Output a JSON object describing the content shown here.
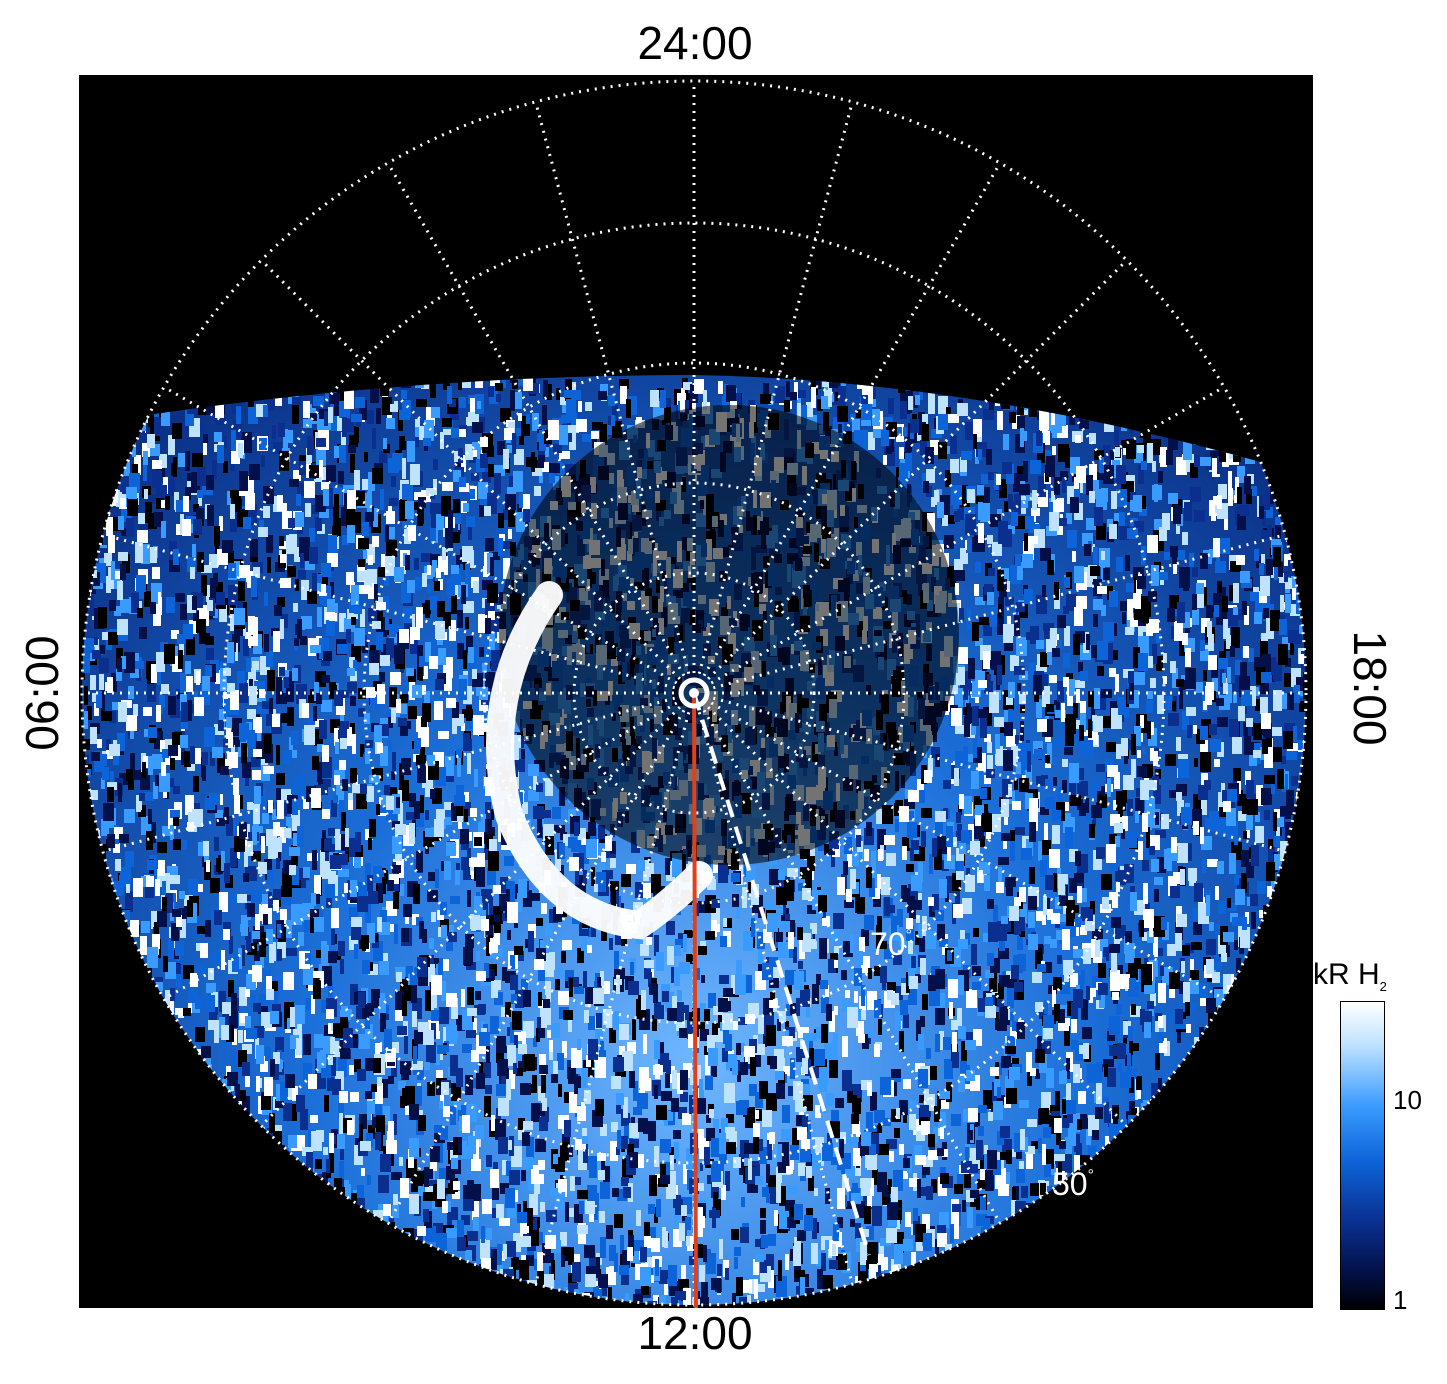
{
  "local_time_labels": {
    "top": "24:00",
    "bottom": "12:00",
    "left": "06:00",
    "right": "18:00"
  },
  "latitude_labels": [
    {
      "text": "70",
      "unit": "°"
    },
    {
      "text": "50",
      "unit": "°"
    }
  ],
  "colorbar": {
    "title": "kR H",
    "title_sub": "2",
    "scale": "log",
    "range": [
      1,
      30
    ],
    "ticks": [
      "10",
      "1"
    ],
    "colors": [
      "#000000",
      "#031049",
      "#0a2f8f",
      "#0d63d8",
      "#3a9bff",
      "#bfe2ff",
      "#ffffff"
    ]
  },
  "colors": {
    "background": "#000000",
    "grid": "#ffffff",
    "meridian_line": "#e0401c",
    "main_oval": "#ffffff"
  }
}
